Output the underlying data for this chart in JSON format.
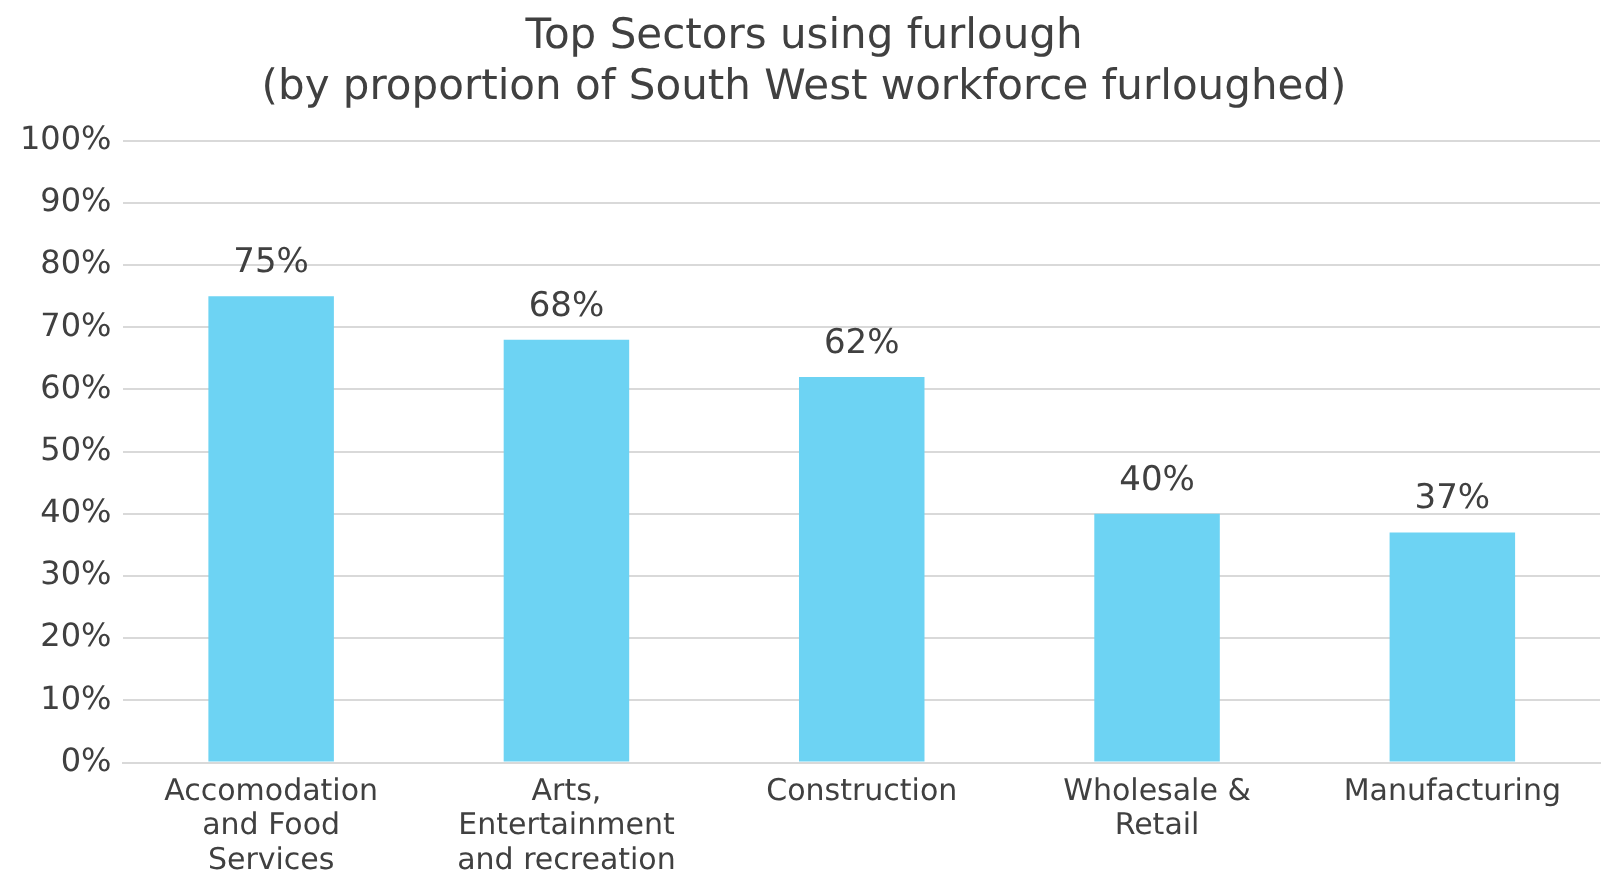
{
  "chart_data": {
    "type": "bar",
    "title": [
      "Top Sectors using furlough",
      "(by proportion of South West workforce furloughed)"
    ],
    "categories": [
      "Accomodation and Food Services",
      "Arts, Entertainment and recreation",
      "Construction",
      "Wholesale & Retail",
      "Manufacturing"
    ],
    "values": [
      75,
      68,
      62,
      40,
      37
    ],
    "value_labels": [
      "75%",
      "68%",
      "62%",
      "40%",
      "37%"
    ],
    "color": "#6dd3f3",
    "ylim": [
      0,
      100
    ],
    "yticks": [
      {
        "value": 0,
        "label": "0%"
      },
      {
        "value": 10,
        "label": "10%"
      },
      {
        "value": 20,
        "label": "20%"
      },
      {
        "value": 30,
        "label": "30%"
      },
      {
        "value": 40,
        "label": "40%"
      },
      {
        "value": 50,
        "label": "50%"
      },
      {
        "value": 60,
        "label": "60%"
      },
      {
        "value": 70,
        "label": "70%"
      },
      {
        "value": 80,
        "label": "80%"
      },
      {
        "value": 90,
        "label": "90%"
      },
      {
        "value": 100,
        "label": "100%"
      }
    ],
    "grid": "y",
    "legend": false
  }
}
